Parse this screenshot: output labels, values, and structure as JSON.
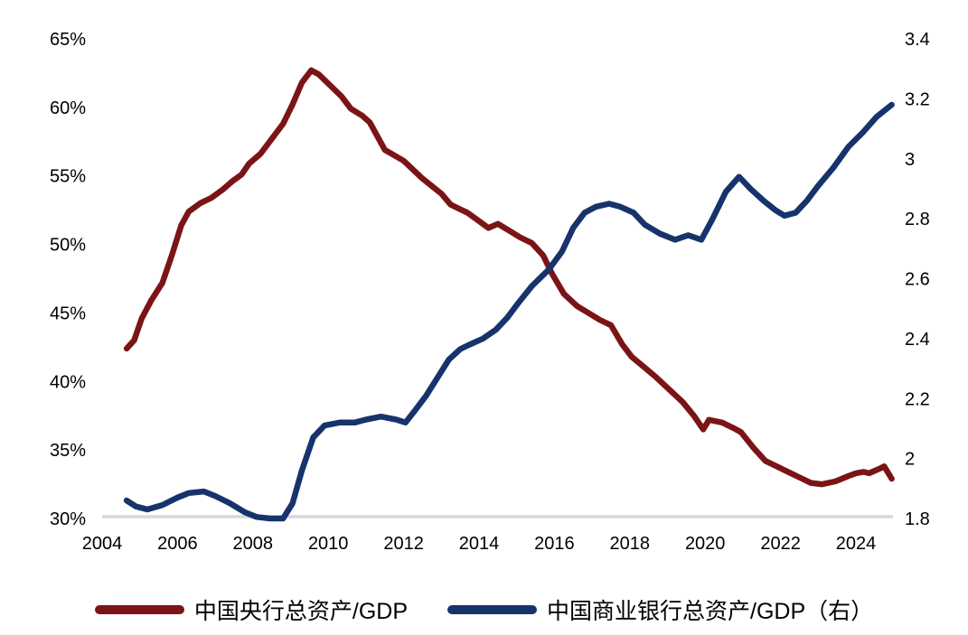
{
  "chart_data": {
    "type": "line",
    "title": "",
    "grid": false,
    "legend_position": "bottom",
    "background_color": "#ffffff",
    "text_color": "#000000",
    "baseline_color": "#d8d8d8",
    "x_axis": {
      "ticks": [
        2004,
        2006,
        2008,
        2010,
        2012,
        2014,
        2016,
        2018,
        2020,
        2022,
        2024
      ],
      "range": [
        2004,
        2025.2
      ]
    },
    "left_axis": {
      "ticks": [
        65,
        60,
        55,
        50,
        45,
        40,
        35,
        30
      ],
      "tick_suffix": "%",
      "range": [
        30,
        65
      ]
    },
    "right_axis": {
      "ticks": [
        3.4,
        3.2,
        3,
        2.8,
        2.6,
        2.4,
        2.2,
        2,
        1.8
      ],
      "tick_suffix": "",
      "range": [
        1.8,
        3.4
      ]
    },
    "series": [
      {
        "name": "中国央行总资产/GDP",
        "axis": "left",
        "color": "#7b1416",
        "points": [
          [
            2004.65,
            42.4
          ],
          [
            2004.85,
            43.0
          ],
          [
            2005.05,
            44.6
          ],
          [
            2005.3,
            45.9
          ],
          [
            2005.6,
            47.2
          ],
          [
            2005.85,
            49.2
          ],
          [
            2006.1,
            51.4
          ],
          [
            2006.3,
            52.4
          ],
          [
            2006.6,
            53.0
          ],
          [
            2006.9,
            53.4
          ],
          [
            2007.2,
            54.0
          ],
          [
            2007.45,
            54.6
          ],
          [
            2007.7,
            55.1
          ],
          [
            2007.9,
            55.9
          ],
          [
            2008.2,
            56.6
          ],
          [
            2008.5,
            57.7
          ],
          [
            2008.8,
            58.8
          ],
          [
            2009.05,
            60.2
          ],
          [
            2009.3,
            61.8
          ],
          [
            2009.55,
            62.7
          ],
          [
            2009.75,
            62.4
          ],
          [
            2010.05,
            61.6
          ],
          [
            2010.35,
            60.8
          ],
          [
            2010.6,
            59.9
          ],
          [
            2010.9,
            59.4
          ],
          [
            2011.1,
            58.9
          ],
          [
            2011.5,
            56.9
          ],
          [
            2012.0,
            56.1
          ],
          [
            2012.5,
            54.8
          ],
          [
            2013.0,
            53.7
          ],
          [
            2013.25,
            52.9
          ],
          [
            2013.7,
            52.3
          ],
          [
            2014.0,
            51.7
          ],
          [
            2014.25,
            51.2
          ],
          [
            2014.5,
            51.5
          ],
          [
            2014.8,
            51.0
          ],
          [
            2015.1,
            50.5
          ],
          [
            2015.4,
            50.1
          ],
          [
            2015.7,
            49.2
          ],
          [
            2015.95,
            47.8
          ],
          [
            2016.25,
            46.4
          ],
          [
            2016.6,
            45.5
          ],
          [
            2016.9,
            45.0
          ],
          [
            2017.2,
            44.5
          ],
          [
            2017.5,
            44.1
          ],
          [
            2017.8,
            42.7
          ],
          [
            2018.05,
            41.8
          ],
          [
            2018.4,
            41.0
          ],
          [
            2018.7,
            40.3
          ],
          [
            2019.05,
            39.4
          ],
          [
            2019.4,
            38.5
          ],
          [
            2019.7,
            37.5
          ],
          [
            2019.95,
            36.5
          ],
          [
            2020.1,
            37.2
          ],
          [
            2020.45,
            37.0
          ],
          [
            2020.75,
            36.6
          ],
          [
            2020.95,
            36.3
          ],
          [
            2021.3,
            35.1
          ],
          [
            2021.6,
            34.2
          ],
          [
            2021.9,
            33.8
          ],
          [
            2022.2,
            33.4
          ],
          [
            2022.5,
            33.0
          ],
          [
            2022.8,
            32.6
          ],
          [
            2023.1,
            32.5
          ],
          [
            2023.45,
            32.7
          ],
          [
            2023.8,
            33.1
          ],
          [
            2024.0,
            33.3
          ],
          [
            2024.2,
            33.4
          ],
          [
            2024.35,
            33.3
          ],
          [
            2024.6,
            33.6
          ],
          [
            2024.75,
            33.8
          ],
          [
            2024.95,
            32.9
          ]
        ]
      },
      {
        "name": "中国商业银行总资产/GDP（右）",
        "axis": "right",
        "color": "#17336b",
        "points": [
          [
            2004.65,
            1.86
          ],
          [
            2004.9,
            1.84
          ],
          [
            2005.2,
            1.83
          ],
          [
            2005.6,
            1.845
          ],
          [
            2006.0,
            1.87
          ],
          [
            2006.3,
            1.885
          ],
          [
            2006.7,
            1.89
          ],
          [
            2007.0,
            1.875
          ],
          [
            2007.4,
            1.85
          ],
          [
            2007.8,
            1.82
          ],
          [
            2008.1,
            1.805
          ],
          [
            2008.45,
            1.8
          ],
          [
            2008.8,
            1.8
          ],
          [
            2009.05,
            1.85
          ],
          [
            2009.3,
            1.96
          ],
          [
            2009.6,
            2.07
          ],
          [
            2009.9,
            2.11
          ],
          [
            2010.3,
            2.12
          ],
          [
            2010.7,
            2.12
          ],
          [
            2011.0,
            2.13
          ],
          [
            2011.4,
            2.14
          ],
          [
            2011.8,
            2.13
          ],
          [
            2012.05,
            2.12
          ],
          [
            2012.3,
            2.16
          ],
          [
            2012.6,
            2.21
          ],
          [
            2012.95,
            2.28
          ],
          [
            2013.2,
            2.33
          ],
          [
            2013.5,
            2.365
          ],
          [
            2013.75,
            2.38
          ],
          [
            2014.1,
            2.4
          ],
          [
            2014.45,
            2.43
          ],
          [
            2014.75,
            2.47
          ],
          [
            2015.05,
            2.52
          ],
          [
            2015.4,
            2.575
          ],
          [
            2015.85,
            2.63
          ],
          [
            2016.2,
            2.69
          ],
          [
            2016.5,
            2.77
          ],
          [
            2016.8,
            2.82
          ],
          [
            2017.1,
            2.84
          ],
          [
            2017.45,
            2.85
          ],
          [
            2017.75,
            2.84
          ],
          [
            2018.1,
            2.82
          ],
          [
            2018.4,
            2.78
          ],
          [
            2018.8,
            2.75
          ],
          [
            2019.2,
            2.73
          ],
          [
            2019.55,
            2.745
          ],
          [
            2019.9,
            2.73
          ],
          [
            2020.2,
            2.8
          ],
          [
            2020.55,
            2.89
          ],
          [
            2020.9,
            2.94
          ],
          [
            2021.2,
            2.9
          ],
          [
            2021.55,
            2.86
          ],
          [
            2021.85,
            2.83
          ],
          [
            2022.1,
            2.81
          ],
          [
            2022.4,
            2.82
          ],
          [
            2022.7,
            2.86
          ],
          [
            2023.0,
            2.91
          ],
          [
            2023.4,
            2.97
          ],
          [
            2023.8,
            3.04
          ],
          [
            2024.2,
            3.09
          ],
          [
            2024.55,
            3.14
          ],
          [
            2024.95,
            3.18
          ]
        ]
      }
    ]
  }
}
